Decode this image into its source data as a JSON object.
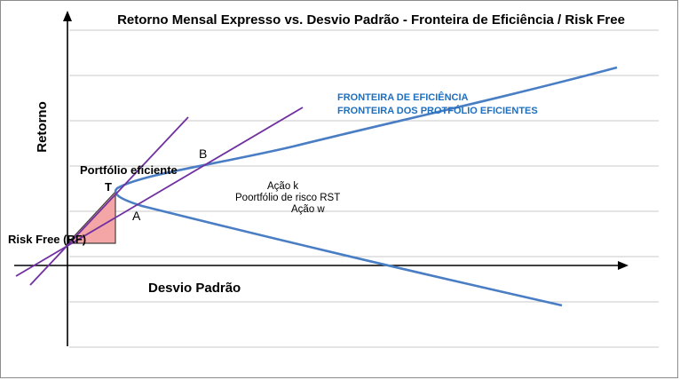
{
  "title": "Retorno Mensal Expresso vs.  Desvio Padrão -  Fronteira de Eficiência /  Risk  Free",
  "ylabel": "Retorno",
  "xlabel": "Desvio Padrão",
  "labels": {
    "risk_free": "Risk Free (RF)",
    "portfolio_eficiente": "Portfólio eficiente",
    "point_t": "T",
    "point_a": "A",
    "point_b": "B",
    "acao_k": "Ação k",
    "portfolio_risco": "Poortfólio de risco  RST",
    "acao_w": "Ação w",
    "fronteira_eficiencia": "FRONTEIRA DE EFICIÊNCIA",
    "fronteira_portfolios": "FRONTEIRA DOS PROTFÓLIO EFICIENTES"
  },
  "colors": {
    "frontier": "#4a7ec4",
    "capital_lines": "#7030a0",
    "triangle_fill": "#f4a6a6",
    "gridlines": "#c8c8c8",
    "axes": "#000000",
    "frontier_label": "#1f6fbf"
  }
}
